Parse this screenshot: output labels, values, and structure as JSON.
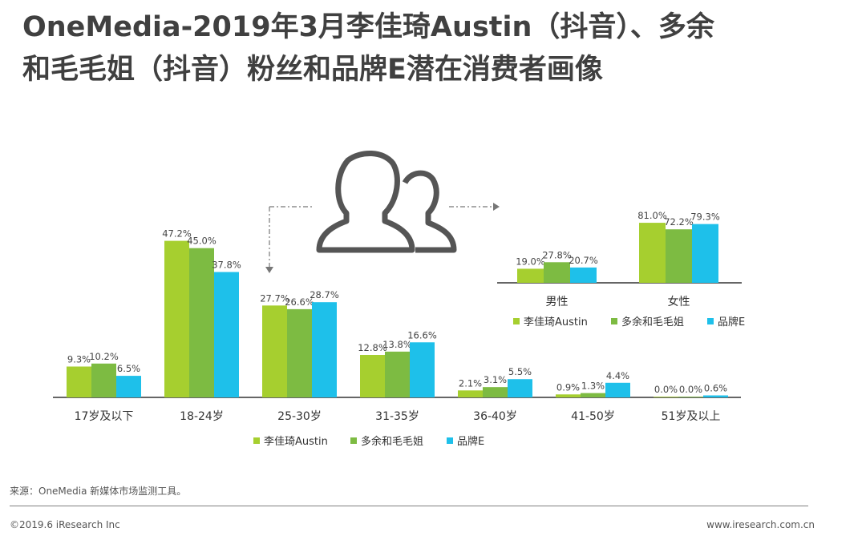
{
  "title_line1": "OneMedia-2019年3月李佳琦Austin（抖音）、多余",
  "title_line2": "和毛毛姐（抖音）粉丝和品牌E潜在消费者画像",
  "source": "来源：OneMedia 新媒体市场监测工具。",
  "copyright": "©2019.6 iResearch Inc",
  "website": "www.iresearch.com.cn",
  "colors": {
    "s1": "#a6cf2f",
    "s2": "#7dbb42",
    "s3": "#1ec0ea"
  },
  "icon": "two-users-icon",
  "chart_data": [
    {
      "type": "bar",
      "categories": [
        "17岁及以下",
        "18-24岁",
        "25-30岁",
        "31-35岁",
        "36-40岁",
        "41-50岁",
        "51岁及以上"
      ],
      "series": [
        {
          "name": "李佳琦Austin",
          "values": [
            9.3,
            47.2,
            27.7,
            12.8,
            2.1,
            0.9,
            0.0
          ]
        },
        {
          "name": "多余和毛毛姐",
          "values": [
            10.2,
            45.0,
            26.6,
            13.8,
            3.1,
            1.3,
            0.0
          ]
        },
        {
          "name": "品牌E",
          "values": [
            6.5,
            37.8,
            28.7,
            16.6,
            5.5,
            4.4,
            0.6
          ]
        }
      ],
      "unit": "%",
      "legend_position": "bottom"
    },
    {
      "type": "bar",
      "categories": [
        "男性",
        "女性"
      ],
      "series": [
        {
          "name": "李佳琦Austin",
          "values": [
            19.0,
            81.0
          ]
        },
        {
          "name": "多余和毛毛姐",
          "values": [
            27.8,
            72.2
          ]
        },
        {
          "name": "品牌E",
          "values": [
            20.7,
            79.3
          ]
        }
      ],
      "unit": "%",
      "legend_position": "bottom"
    }
  ]
}
